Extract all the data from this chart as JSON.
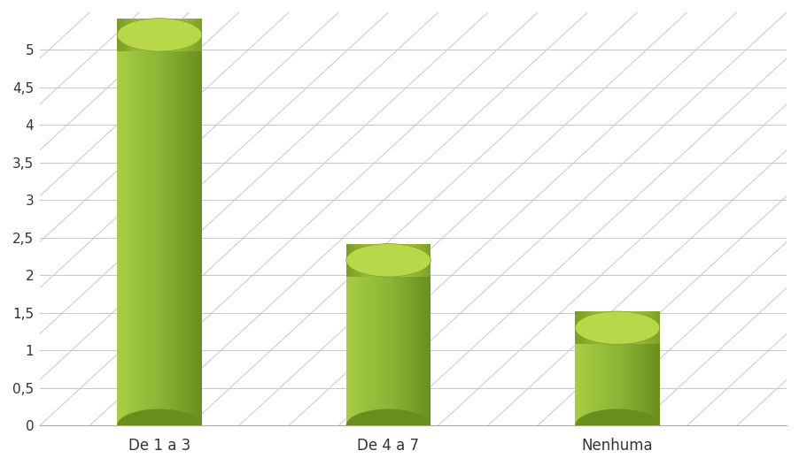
{
  "categories": [
    "De 1 a 3",
    "De 4 a 7",
    "Nenhuma"
  ],
  "values": [
    5.2,
    2.2,
    1.3
  ],
  "bar_color_main": "#8ab536",
  "bar_color_light": "#a8cc44",
  "bar_color_dark": "#6a8e1e",
  "bar_color_top_light": "#b8d84a",
  "bar_color_top_dark": "#7a9e28",
  "background_color": "#ffffff",
  "grid_color": "#c8c8c8",
  "ylim": [
    0,
    5.5
  ],
  "yticks": [
    0,
    0.5,
    1,
    1.5,
    2,
    2.5,
    3,
    3.5,
    4,
    4.5,
    5
  ],
  "ytick_labels": [
    "0",
    "0,5",
    "1",
    "1,5",
    "2",
    "2,5",
    "3",
    "3,5",
    "4",
    "4,5",
    "5"
  ],
  "tick_fontsize": 11,
  "label_fontsize": 12,
  "x_positions": [
    1.2,
    3.5,
    5.8
  ],
  "bar_width": 0.85,
  "xlim": [
    0,
    7.5
  ]
}
